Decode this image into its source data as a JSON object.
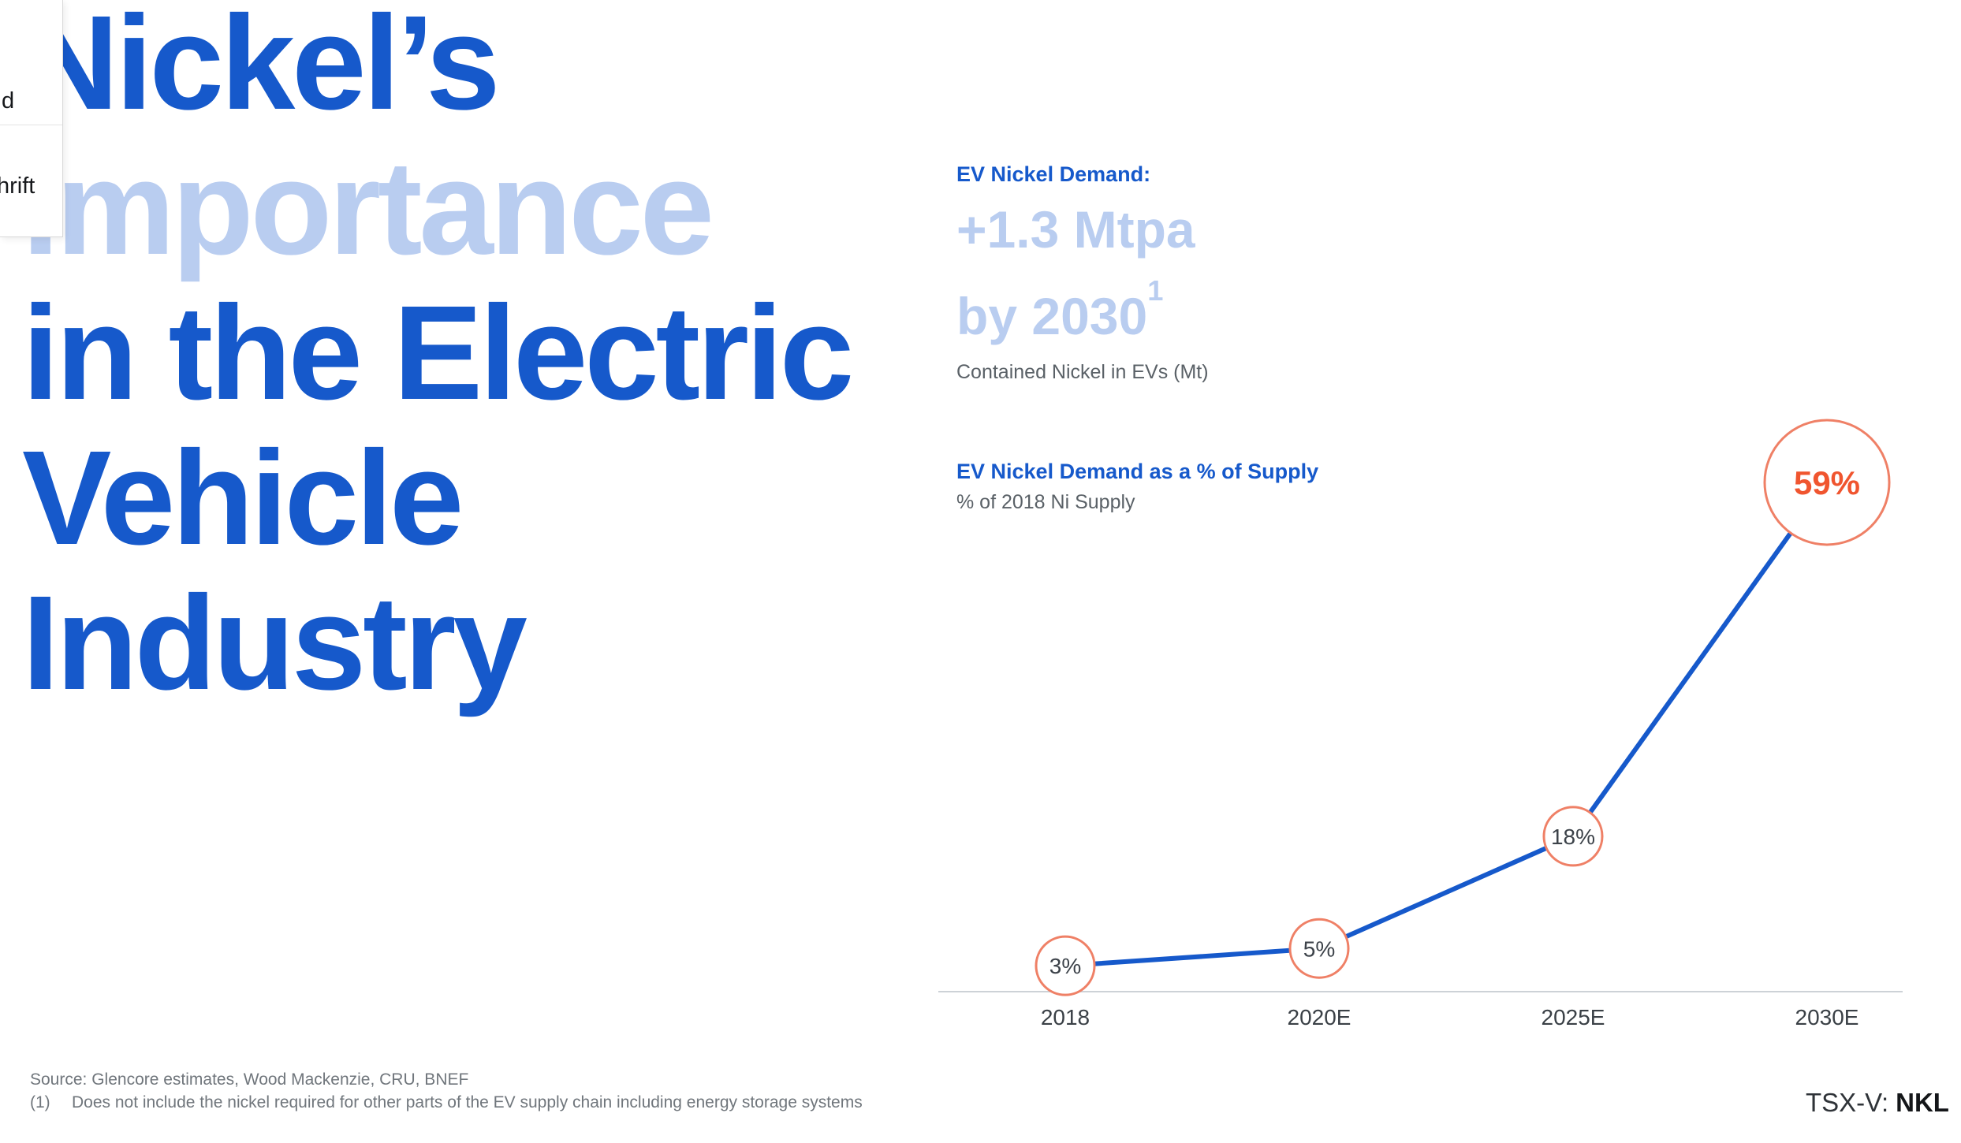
{
  "overlay_dropdown": {
    "item_fragments": [
      "d",
      "hrift"
    ]
  },
  "headline": {
    "lines": [
      {
        "text": "Nickel’s",
        "tone": "dark"
      },
      {
        "text": "Importance",
        "tone": "light"
      },
      {
        "text": "in the Electric",
        "tone": "dark"
      },
      {
        "text": "Vehicle",
        "tone": "dark"
      },
      {
        "text": "Industry",
        "tone": "dark"
      }
    ]
  },
  "demand_callout": {
    "label": "EV Nickel Demand:",
    "value_line1": "+1.3 Mtpa",
    "value_line2": "by 2030",
    "value_line2_sup": "1",
    "subtitle": "Contained Nickel in EVs (Mt)"
  },
  "supply_callout": {
    "title": "EV Nickel Demand as a % of Supply",
    "subtitle": "% of 2018 Ni Supply"
  },
  "chart_data": {
    "type": "line",
    "title": "EV Nickel Demand as a % of Supply",
    "xlabel": "",
    "ylabel": "% of 2018 Ni Supply",
    "categories": [
      "2018",
      "2020E",
      "2025E",
      "2030E"
    ],
    "values": [
      3,
      5,
      18,
      59
    ],
    "labels": [
      "3%",
      "5%",
      "18%",
      "59%"
    ],
    "emphasized_point": "2030E",
    "ylim": [
      0,
      65
    ],
    "grid": false,
    "legend": false,
    "line_color": "#1659cb",
    "marker_color": "#ef8066",
    "emphasis_color": "#f0552f",
    "axis_color": "#cdd2d7",
    "tick_color": "#3a4046"
  },
  "footer": {
    "source": "Source: Glencore estimates, Wood Mackenzie, CRU, BNEF",
    "footnote_marker": "(1)",
    "footnote": "Does not include the nickel required for other parts of the EV supply chain including energy storage systems",
    "ticker_label": "TSX-V:",
    "ticker": "NKL"
  },
  "colors": {
    "brand_blue": "#1659cb",
    "pale_blue": "#b9cdf0",
    "marker_coral": "#ef8066",
    "emphasis_orange": "#f0552f",
    "axis_gray": "#cdd2d7",
    "text_gray": "#5a6167",
    "muted_gray": "#70767c"
  }
}
